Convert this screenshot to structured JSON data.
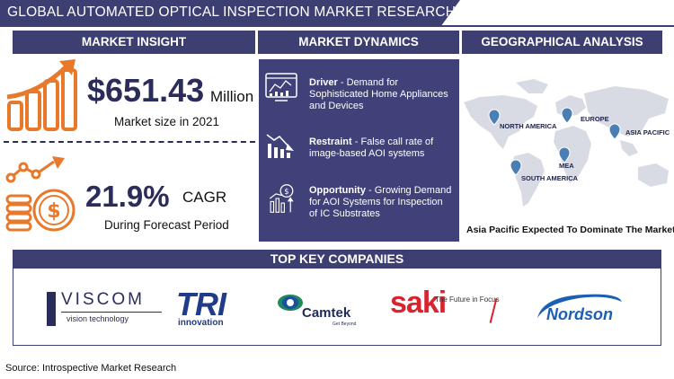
{
  "header": {
    "title": "GLOBAL AUTOMATED OPTICAL INSPECTION MARKET RESEARCH REPORT"
  },
  "insight": {
    "heading": "MARKET INSIGHT",
    "market_value": "$651.43",
    "market_unit": "Million",
    "market_caption": "Market size in 2021",
    "cagr_value": "21.9%",
    "cagr_unit": "CAGR",
    "cagr_caption": "During Forecast Period",
    "icons": [
      "growth-bar-chart-icon",
      "dollar-coins-growth-icon"
    ]
  },
  "dynamics": {
    "heading": "MARKET DYNAMICS",
    "items": [
      {
        "label": "Driver",
        "text": "- Demand for Sophisticated Home Appliances and Devices",
        "icon": "analytics-dashboard-icon"
      },
      {
        "label": "Restraint",
        "text": "- False call rate of image-based AOI systems",
        "icon": "declining-chart-icon"
      },
      {
        "label": "Opportunity",
        "text": "- Growing Demand for AOI Systems for Inspection of IC Substrates",
        "icon": "opportunity-growth-icon"
      }
    ]
  },
  "geography": {
    "heading": "GEOGRAPHICAL ANALYSIS",
    "regions": [
      "NORTH AMERICA",
      "EUROPE",
      "ASIA PACIFIC",
      "MEA",
      "SOUTH AMERICA"
    ],
    "caption": "Asia Pacific Expected To Dominate The Market"
  },
  "companies": {
    "heading": "TOP KEY COMPANIES",
    "logos": [
      {
        "name": "VISCOM",
        "tagline": "vision technology"
      },
      {
        "name": "TRI",
        "tagline": "innovation"
      },
      {
        "name": "Camtek",
        "tagline": "Get Beyond"
      },
      {
        "name": "saki",
        "tagline": "The Future in Focus"
      },
      {
        "name": "Nordson",
        "tagline": ""
      }
    ]
  },
  "source": "Source: Introspective Market Research",
  "colors": {
    "navy": "#3d3f73",
    "orange": "#e8782a",
    "map_gray": "#d9dbe4",
    "pin_blue": "#4a7fb5"
  }
}
